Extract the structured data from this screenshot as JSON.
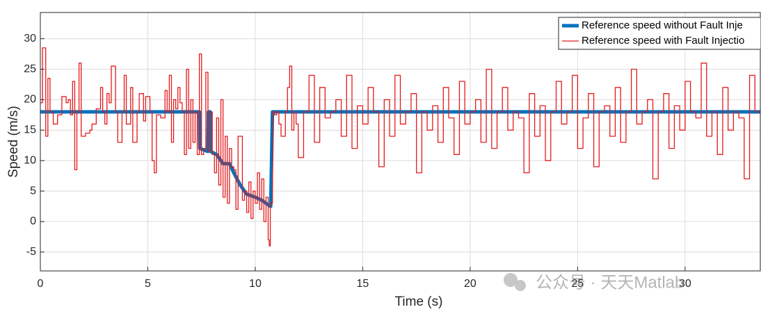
{
  "chart_data": {
    "type": "line",
    "xlabel": "Time (s)",
    "ylabel": "Speed (m/s)",
    "xlim": [
      0,
      33.5
    ],
    "ylim": [
      -8.1,
      34.3
    ],
    "xticks": [
      0,
      5,
      10,
      15,
      20,
      25,
      30
    ],
    "yticks": [
      -5,
      0,
      5,
      10,
      15,
      20,
      25,
      30
    ],
    "grid": true,
    "legend": "upper right",
    "watermark": "公众号 · 天天Matlab",
    "series": [
      {
        "name": "Reference speed without Fault Inje",
        "color": "#0072bd",
        "width": 5,
        "step": false,
        "x": [
          0,
          7.4,
          7.42,
          7.8,
          7.82,
          7.9,
          7.92,
          8.2,
          8.5,
          8.8,
          9.0,
          9.3,
          9.6,
          10.0,
          10.3,
          10.7,
          10.72,
          10.8,
          33.5
        ],
        "values": [
          18,
          18,
          12,
          11.5,
          18,
          18,
          11.5,
          11,
          9.5,
          9.5,
          8,
          6,
          4.5,
          4,
          3.5,
          2.5,
          2.5,
          18,
          18
        ]
      },
      {
        "name": "Reference speed with Fault Injectio",
        "color": "#e31a1c",
        "width": 1.3,
        "step": true,
        "x": [
          0,
          0.1,
          0.25,
          0.35,
          0.45,
          0.6,
          0.8,
          1.0,
          1.2,
          1.3,
          1.4,
          1.5,
          1.6,
          1.7,
          1.8,
          1.9,
          2.1,
          2.3,
          2.4,
          2.6,
          2.8,
          2.9,
          3.0,
          3.1,
          3.2,
          3.3,
          3.5,
          3.6,
          3.8,
          3.9,
          4.0,
          4.2,
          4.3,
          4.5,
          4.6,
          4.8,
          4.9,
          5.1,
          5.2,
          5.3,
          5.4,
          5.6,
          5.8,
          5.9,
          6.0,
          6.1,
          6.2,
          6.3,
          6.4,
          6.5,
          6.6,
          6.7,
          6.8,
          6.9,
          7.0,
          7.1,
          7.2,
          7.3,
          7.4,
          7.5,
          7.6,
          7.7,
          7.8,
          7.9,
          8.0,
          8.1,
          8.2,
          8.3,
          8.4,
          8.5,
          8.6,
          8.7,
          8.8,
          8.9,
          9.0,
          9.1,
          9.2,
          9.4,
          9.5,
          9.6,
          9.7,
          9.8,
          9.9,
          10.0,
          10.1,
          10.2,
          10.3,
          10.4,
          10.5,
          10.6,
          10.65,
          10.7,
          10.8,
          10.9,
          11.0,
          11.1,
          11.2,
          11.4,
          11.5,
          11.6,
          11.7,
          11.8,
          11.9,
          12.0,
          12.25,
          12.5,
          12.75,
          13,
          13.25,
          13.5,
          13.75,
          14,
          14.25,
          14.5,
          14.75,
          15,
          15.25,
          15.5,
          15.75,
          16,
          16.25,
          16.5,
          16.75,
          17,
          17.25,
          17.5,
          17.75,
          18,
          18.25,
          18.5,
          18.75,
          19,
          19.25,
          19.5,
          19.75,
          20,
          20.25,
          20.5,
          20.75,
          21,
          21.25,
          21.5,
          21.75,
          22,
          22.25,
          22.5,
          22.75,
          23,
          23.25,
          23.5,
          23.75,
          24,
          24.25,
          24.5,
          24.75,
          25,
          25.25,
          25.5,
          25.75,
          26,
          26.25,
          26.5,
          26.75,
          27,
          27.25,
          27.5,
          27.75,
          28,
          28.25,
          28.5,
          28.75,
          29,
          29.25,
          29.5,
          29.75,
          30,
          30.25,
          30.5,
          30.75,
          31,
          31.25,
          31.5,
          31.75,
          32,
          32.25,
          32.5,
          32.75,
          33,
          33.25
        ],
        "values": [
          19.5,
          28.5,
          14,
          23.5,
          18,
          16,
          17.5,
          20.5,
          19.5,
          20,
          17.5,
          23,
          8.5,
          18,
          26,
          14,
          14.5,
          15,
          16,
          18.5,
          22,
          18,
          16,
          21,
          19.5,
          25.5,
          18,
          13,
          18,
          24,
          16,
          22,
          13,
          18,
          21,
          16.5,
          20.5,
          18,
          10,
          8,
          17.5,
          17,
          21.5,
          18,
          24,
          13,
          20,
          18.5,
          22,
          19.5,
          18,
          11,
          25,
          12,
          20,
          13,
          18,
          11,
          27.5,
          11,
          12,
          24.5,
          11.5,
          18,
          11,
          8,
          17,
          6,
          20,
          4,
          14,
          3,
          12,
          9,
          8.5,
          2,
          14,
          3.5,
          5,
          1.5,
          6.5,
          0.5,
          5,
          3,
          8,
          2,
          7,
          0,
          4,
          -3,
          -4,
          3,
          18,
          17.5,
          18,
          16,
          14,
          18,
          22,
          25.5,
          15,
          18,
          16,
          10.5,
          18,
          24,
          13,
          22,
          17,
          18,
          20,
          14,
          24,
          12,
          19,
          16,
          22,
          18,
          9,
          20,
          14,
          24,
          16,
          18,
          21,
          8,
          18,
          15,
          19,
          13,
          22,
          17,
          11,
          23,
          16,
          18,
          20,
          13,
          25,
          12,
          18,
          22,
          15,
          18,
          17,
          8,
          21,
          14,
          19,
          10,
          18,
          23,
          16,
          18,
          24,
          12,
          17,
          21,
          9,
          18,
          19,
          14,
          22,
          13,
          18,
          25,
          16,
          18,
          20,
          7,
          18,
          21,
          12,
          19,
          15,
          23,
          18,
          17,
          26,
          14,
          18,
          11,
          22,
          15,
          18,
          17,
          7,
          24,
          18
        ]
      }
    ]
  }
}
